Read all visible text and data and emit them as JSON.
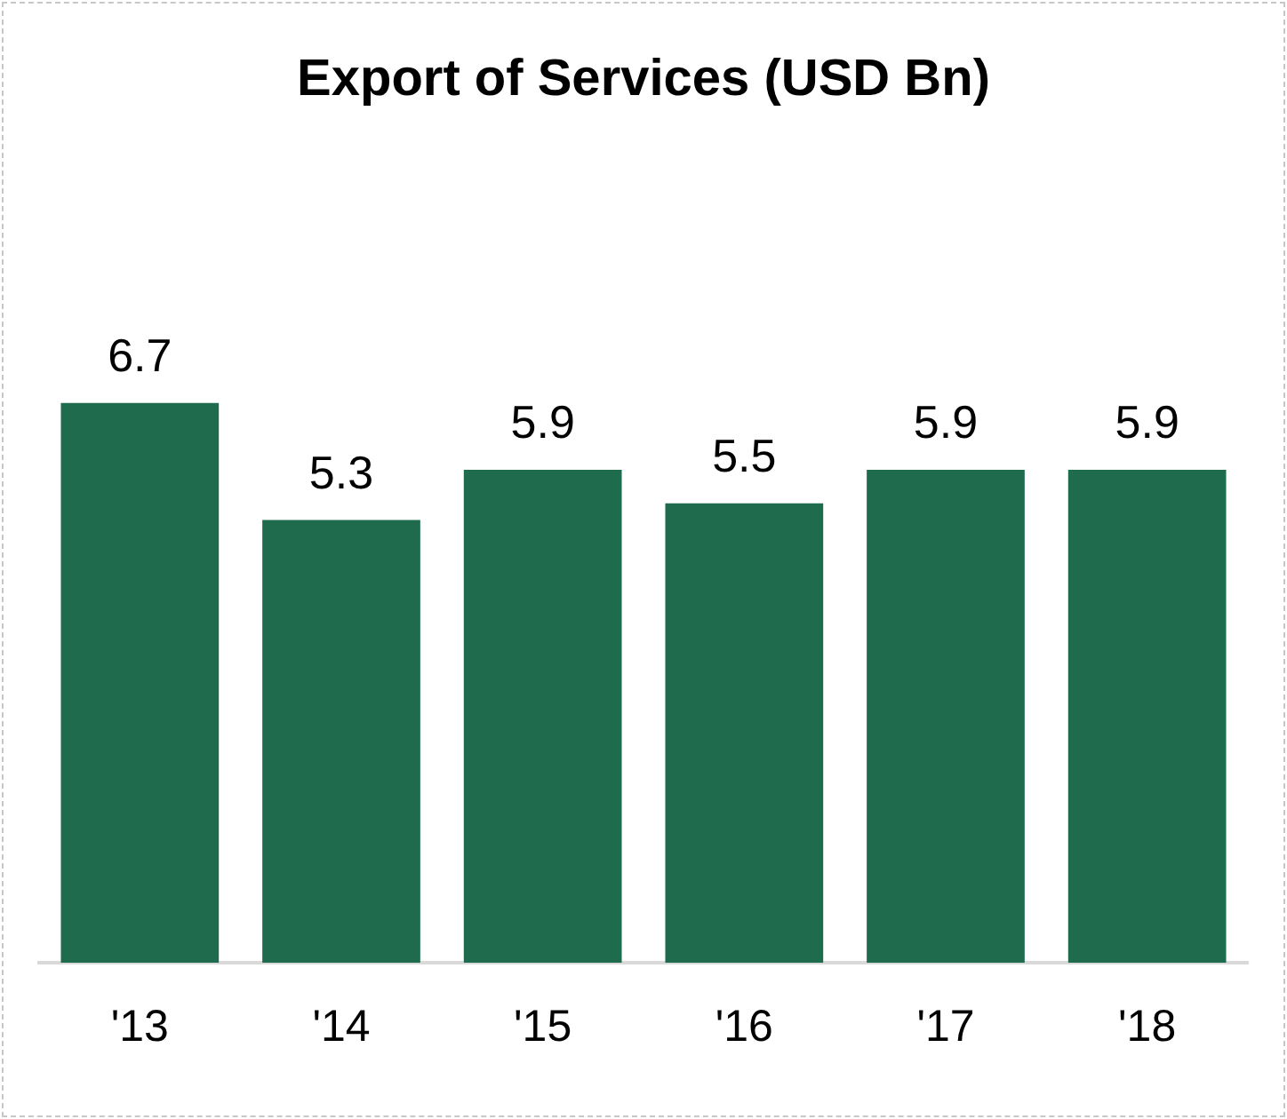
{
  "chart_data": {
    "type": "bar",
    "title": "Export of Services (USD Bn)",
    "categories": [
      "'13",
      "'14",
      "'15",
      "'16",
      "'17",
      "'18"
    ],
    "values": [
      6.7,
      5.3,
      5.9,
      5.5,
      5.9,
      5.9
    ],
    "color": "#1f6b4e",
    "data_labels": true,
    "grid": false,
    "legend": false
  }
}
